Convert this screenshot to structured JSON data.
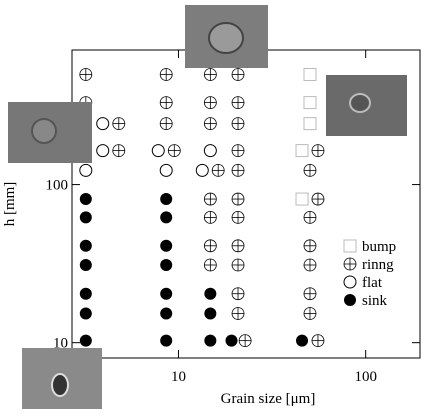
{
  "chart_data": {
    "type": "scatter",
    "xlabel": "Grain size  [μm]",
    "ylabel": "h  [mm]",
    "xscale": "log",
    "yscale": "log",
    "xlim": [
      2.7,
      195
    ],
    "ylim": [
      8,
      710
    ],
    "xticks": [
      10,
      100
    ],
    "yticks": [
      10,
      100
    ],
    "legend": "center right",
    "series": [
      {
        "name": "bump",
        "marker": "square",
        "color": "#bbbbbb",
        "x": [
          50.4,
          50.4,
          50.4,
          45.7,
          45.7
        ],
        "y": [
          497,
          330,
          243,
          164,
          81
        ]
      },
      {
        "name": "rinng",
        "marker": "ring",
        "color": "#000000",
        "x": [
          3.2,
          8.6,
          14.8,
          20.8,
          3.2,
          8.6,
          14.8,
          20.8,
          4.8,
          8.6,
          14.8,
          20.8,
          4.8,
          9.5,
          20.8,
          55.6,
          16.3,
          20.8,
          50.4,
          14.8,
          20.8,
          55.6,
          14.8,
          20.8,
          50.4,
          14.8,
          20.8,
          50.4,
          14.8,
          20.8,
          50.4,
          20.8,
          50.4,
          20.8,
          50.4,
          22.7,
          55.6
        ],
        "y": [
          497,
          497,
          497,
          497,
          330,
          330,
          330,
          330,
          243,
          243,
          243,
          243,
          164,
          164,
          164,
          164,
          123,
          123,
          123,
          81,
          81,
          81,
          62,
          62,
          62,
          41,
          41,
          41,
          31,
          31,
          31,
          20.4,
          20.4,
          15.3,
          15.3,
          10.3,
          10.3
        ]
      },
      {
        "name": "flat",
        "marker": "open",
        "color": "#000000",
        "x": [
          3.94,
          3.94,
          7.8,
          14.8,
          3.2,
          8.6,
          13.4
        ],
        "y": [
          243,
          164,
          164,
          164,
          123,
          123,
          123
        ]
      },
      {
        "name": "sink",
        "marker": "filled",
        "color": "#000000",
        "x": [
          3.2,
          8.6,
          3.2,
          8.6,
          3.2,
          8.6,
          3.2,
          8.6,
          3.2,
          8.6,
          14.8,
          3.2,
          8.6,
          14.8,
          3.2,
          8.6,
          14.8,
          19.2,
          45.7
        ],
        "y": [
          81,
          81,
          62,
          62,
          41,
          41,
          31,
          31,
          20.4,
          20.4,
          20.4,
          15.3,
          15.3,
          15.3,
          10.3,
          10.3,
          10.3,
          10.3,
          10.3
        ]
      }
    ]
  }
}
